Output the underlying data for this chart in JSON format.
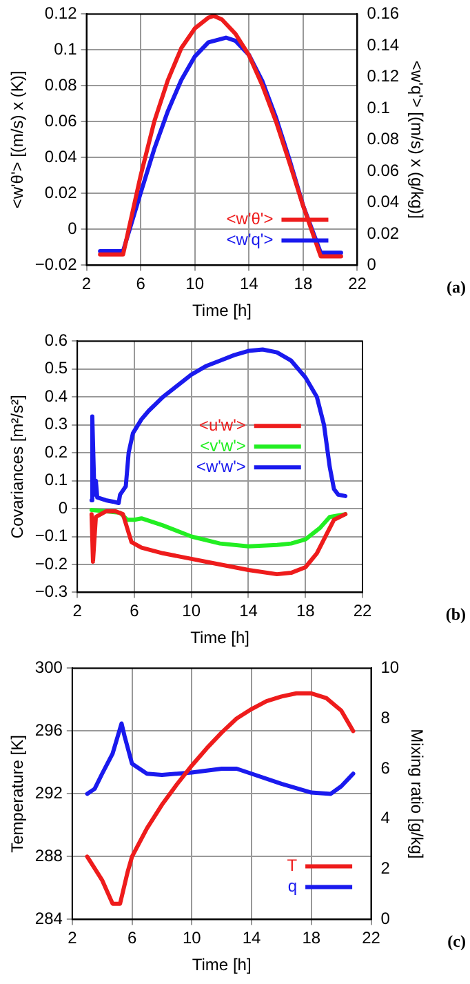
{
  "chart_data": [
    {
      "type": "line",
      "xlabel": "Time [h]",
      "ylabel": "<w'θ'> [(m/s) x (K)]",
      "y2label": "<w'q'> [(m/s) x (g/kg)]",
      "xlim": [
        2,
        22
      ],
      "xticks": [
        2,
        6,
        10,
        14,
        18,
        22
      ],
      "ylim": [
        -0.02,
        0.12
      ],
      "yticks": [
        -0.02,
        0,
        0.02,
        0.04,
        0.06,
        0.08,
        0.1,
        0.12
      ],
      "y2lim": [
        0,
        0.16
      ],
      "y2ticks": [
        0,
        0.02,
        0.04,
        0.06,
        0.08,
        0.1,
        0.12,
        0.14,
        0.16
      ],
      "grid": true,
      "legend": "bottom",
      "annotations": [
        "(a)"
      ],
      "series": [
        {
          "name": "<w'θ'>",
          "color": "#ee1c1c",
          "x": [
            3,
            4.7,
            6,
            7,
            8,
            9,
            10,
            11,
            11.4,
            12,
            13,
            14,
            15,
            16,
            17,
            18,
            19.3,
            20.8
          ],
          "values": [
            -0.014,
            -0.014,
            0.03,
            0.06,
            0.083,
            0.101,
            0.112,
            0.118,
            0.119,
            0.117,
            0.109,
            0.097,
            0.08,
            0.06,
            0.037,
            0.013,
            -0.015,
            -0.015
          ]
        },
        {
          "name": "<w'q'>",
          "color": "#1a1aee",
          "axis": "y2",
          "x": [
            3,
            4.7,
            6,
            7,
            8,
            9,
            10,
            11,
            12.3,
            13,
            14,
            15,
            16,
            17,
            18,
            19.3,
            20.8
          ],
          "values": [
            0.009,
            0.009,
            0.046,
            0.074,
            0.098,
            0.118,
            0.133,
            0.142,
            0.145,
            0.143,
            0.134,
            0.117,
            0.094,
            0.067,
            0.038,
            0.008,
            0.008
          ]
        }
      ]
    },
    {
      "type": "line",
      "xlabel": "Time [h]",
      "ylabel": "Covariances [m²/s²]",
      "xlim": [
        2,
        22
      ],
      "xticks": [
        2,
        6,
        10,
        14,
        18,
        22
      ],
      "ylim": [
        -0.3,
        0.6
      ],
      "yticks": [
        -0.3,
        -0.2,
        -0.1,
        0,
        0.1,
        0.2,
        0.3,
        0.4,
        0.5,
        0.6
      ],
      "grid": true,
      "legend": "center",
      "annotations": [
        "(b)"
      ],
      "series": [
        {
          "name": "<u'w'>",
          "color": "#ee1c1c",
          "x": [
            3,
            3.1,
            3.3,
            4,
            4.7,
            5.2,
            5.5,
            5.8,
            6.5,
            8,
            10,
            12,
            14,
            16,
            17,
            18,
            18.8,
            19.5,
            20,
            20.8
          ],
          "values": [
            -0.02,
            -0.19,
            -0.03,
            -0.01,
            -0.01,
            -0.02,
            -0.07,
            -0.12,
            -0.14,
            -0.16,
            -0.18,
            -0.2,
            -0.22,
            -0.235,
            -0.23,
            -0.21,
            -0.16,
            -0.09,
            -0.04,
            -0.02
          ]
        },
        {
          "name": "<v'w'>",
          "color": "#22ee22",
          "x": [
            3,
            4,
            5,
            5.5,
            6,
            6.5,
            8,
            10,
            12,
            14,
            16,
            17,
            18,
            19,
            19.7,
            20.8
          ],
          "values": [
            -0.005,
            -0.01,
            -0.015,
            -0.04,
            -0.04,
            -0.035,
            -0.06,
            -0.1,
            -0.125,
            -0.135,
            -0.13,
            -0.125,
            -0.11,
            -0.07,
            -0.03,
            -0.02
          ]
        },
        {
          "name": "<w'w'>",
          "color": "#1a1aee",
          "x": [
            3,
            3.05,
            3.2,
            3.3,
            3.4,
            4,
            4.5,
            4.9,
            5,
            5.4,
            5.6,
            5.9,
            6.5,
            7,
            8,
            9,
            10,
            11,
            12,
            13,
            14,
            15,
            16,
            17,
            18,
            18.8,
            19.3,
            19.7,
            20,
            20.3,
            20.8
          ],
          "values": [
            0.03,
            0.33,
            0.05,
            0.1,
            0.04,
            0.03,
            0.025,
            0.02,
            0.05,
            0.08,
            0.2,
            0.27,
            0.32,
            0.35,
            0.4,
            0.44,
            0.48,
            0.51,
            0.53,
            0.55,
            0.565,
            0.57,
            0.56,
            0.53,
            0.47,
            0.4,
            0.3,
            0.15,
            0.07,
            0.05,
            0.045
          ]
        }
      ]
    },
    {
      "type": "line",
      "xlabel": "Time [h]",
      "ylabel": "Temperature [K]",
      "y2label": "Mixing ratio [g/kg]",
      "xlim": [
        2,
        22
      ],
      "xticks": [
        2,
        6,
        10,
        14,
        18,
        22
      ],
      "ylim": [
        284,
        300
      ],
      "yticks": [
        284,
        288,
        292,
        296,
        300
      ],
      "y2lim": [
        0,
        10
      ],
      "y2ticks": [
        0,
        2,
        4,
        6,
        8,
        10
      ],
      "grid": true,
      "legend": "bottom right",
      "annotations": [
        "(c)"
      ],
      "series": [
        {
          "name": "T",
          "color": "#ee1c1c",
          "x": [
            3,
            4,
            4.7,
            5.2,
            5.7,
            6,
            7,
            8,
            9,
            10,
            11,
            12,
            13,
            14,
            15,
            16,
            17,
            18,
            19,
            20,
            20.8
          ],
          "values": [
            288,
            286.5,
            285,
            285,
            287,
            288,
            289.8,
            291.3,
            292.6,
            293.8,
            294.9,
            295.9,
            296.8,
            297.4,
            297.9,
            298.2,
            298.4,
            298.4,
            298.1,
            297.3,
            296
          ]
        },
        {
          "name": "q",
          "color": "#1a1aee",
          "axis": "y2",
          "x": [
            3,
            3.5,
            4,
            4.7,
            5.3,
            5.5,
            6,
            7,
            8,
            10,
            12,
            13,
            14,
            16,
            18,
            19.3,
            20,
            20.8
          ],
          "values": [
            5.0,
            5.2,
            5.8,
            6.6,
            7.8,
            7.3,
            6.2,
            5.8,
            5.75,
            5.85,
            6.0,
            6.0,
            5.8,
            5.4,
            5.05,
            5.0,
            5.3,
            5.8
          ]
        }
      ]
    }
  ]
}
